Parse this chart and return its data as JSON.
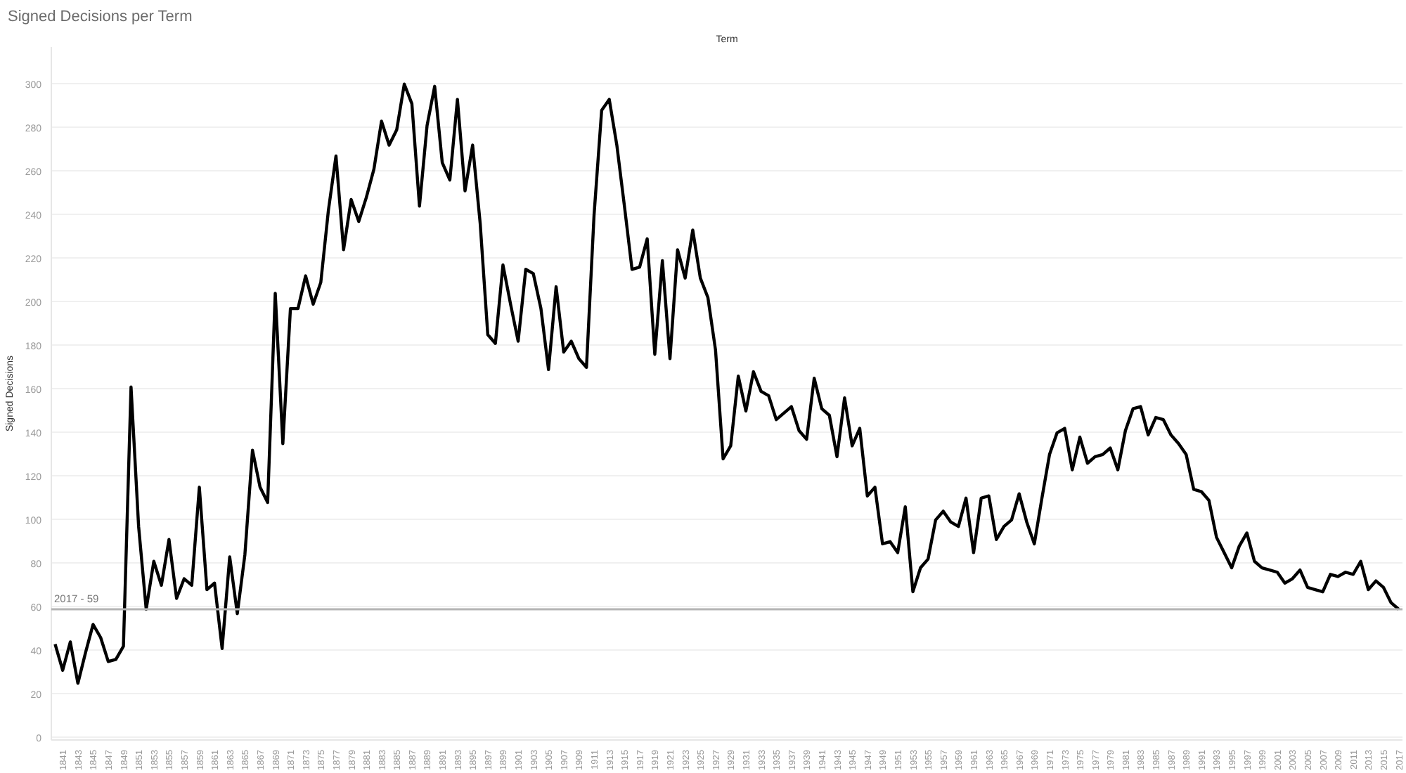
{
  "chart_data": {
    "type": "line",
    "title": "Signed Decisions per Term",
    "xlabel": "Term",
    "ylabel": "Signed Decisions",
    "x": [
      1840,
      1841,
      1842,
      1843,
      1844,
      1845,
      1846,
      1847,
      1848,
      1849,
      1850,
      1851,
      1852,
      1853,
      1854,
      1855,
      1856,
      1857,
      1858,
      1859,
      1860,
      1861,
      1862,
      1863,
      1864,
      1865,
      1866,
      1867,
      1868,
      1869,
      1870,
      1871,
      1872,
      1873,
      1874,
      1875,
      1876,
      1877,
      1878,
      1879,
      1880,
      1881,
      1882,
      1883,
      1884,
      1885,
      1886,
      1887,
      1888,
      1889,
      1890,
      1891,
      1892,
      1893,
      1894,
      1895,
      1896,
      1897,
      1898,
      1899,
      1900,
      1901,
      1902,
      1903,
      1904,
      1905,
      1906,
      1907,
      1908,
      1909,
      1910,
      1911,
      1912,
      1913,
      1914,
      1915,
      1916,
      1917,
      1918,
      1919,
      1920,
      1921,
      1922,
      1923,
      1924,
      1925,
      1926,
      1927,
      1928,
      1929,
      1930,
      1931,
      1932,
      1933,
      1934,
      1935,
      1936,
      1937,
      1938,
      1939,
      1940,
      1941,
      1942,
      1943,
      1944,
      1945,
      1946,
      1947,
      1948,
      1949,
      1950,
      1951,
      1952,
      1953,
      1954,
      1955,
      1956,
      1957,
      1958,
      1959,
      1960,
      1961,
      1962,
      1963,
      1964,
      1965,
      1966,
      1967,
      1968,
      1969,
      1970,
      1971,
      1972,
      1973,
      1974,
      1975,
      1976,
      1977,
      1978,
      1979,
      1980,
      1981,
      1982,
      1983,
      1984,
      1985,
      1986,
      1987,
      1988,
      1989,
      1990,
      1991,
      1992,
      1993,
      1994,
      1995,
      1996,
      1997,
      1998,
      1999,
      2000,
      2001,
      2002,
      2003,
      2004,
      2005,
      2006,
      2007,
      2008,
      2009,
      2010,
      2011,
      2012,
      2013,
      2014,
      2015,
      2016,
      2017
    ],
    "series": [
      {
        "color": "#000000",
        "values": [
          43,
          31,
          44,
          25,
          39,
          52,
          46,
          35,
          36,
          42,
          161,
          97,
          59,
          81,
          70,
          91,
          64,
          73,
          70,
          115,
          68,
          71,
          41,
          83,
          57,
          84,
          132,
          115,
          108,
          204,
          135,
          197,
          197,
          212,
          199,
          209,
          242,
          267,
          224,
          247,
          237,
          248,
          261,
          283,
          272,
          279,
          300,
          291,
          244,
          281,
          299,
          264,
          256,
          293,
          251,
          272,
          236,
          185,
          181,
          217,
          199,
          182,
          215,
          213,
          197,
          169,
          207,
          177,
          182,
          174,
          170,
          240,
          288,
          293,
          272,
          244,
          215,
          216,
          229,
          176,
          219,
          174,
          224,
          211,
          233,
          211,
          202,
          178,
          128,
          134,
          166,
          150,
          168,
          159,
          157,
          146,
          149,
          152,
          141,
          137,
          165,
          151,
          148,
          129,
          156,
          134,
          142,
          111,
          115,
          89,
          90,
          85,
          106,
          67,
          78,
          82,
          100,
          104,
          99,
          97,
          110,
          85,
          110,
          111,
          91,
          97,
          100,
          112,
          99,
          89,
          110,
          130,
          140,
          142,
          123,
          138,
          126,
          129,
          130,
          133,
          123,
          141,
          151,
          152,
          139,
          147,
          146,
          139,
          135,
          130,
          114,
          113,
          109,
          92,
          85,
          78,
          88,
          94,
          81,
          78,
          77,
          76,
          71,
          73,
          77,
          69,
          68,
          67,
          75,
          74,
          76,
          75,
          81,
          68,
          72,
          69,
          62,
          59
        ]
      }
    ],
    "xlim": [
      1839.5,
      2017.5
    ],
    "xticks": [
      1841,
      1843,
      1845,
      1847,
      1849,
      1851,
      1853,
      1855,
      1857,
      1859,
      1861,
      1863,
      1865,
      1867,
      1869,
      1871,
      1873,
      1875,
      1877,
      1879,
      1881,
      1883,
      1885,
      1887,
      1889,
      1891,
      1893,
      1895,
      1897,
      1899,
      1901,
      1903,
      1905,
      1907,
      1909,
      1911,
      1913,
      1915,
      1917,
      1919,
      1921,
      1923,
      1925,
      1927,
      1929,
      1931,
      1933,
      1935,
      1937,
      1939,
      1941,
      1943,
      1945,
      1947,
      1949,
      1951,
      1953,
      1955,
      1957,
      1959,
      1961,
      1963,
      1965,
      1967,
      1969,
      1971,
      1973,
      1975,
      1977,
      1979,
      1981,
      1983,
      1985,
      1987,
      1989,
      1991,
      1993,
      1995,
      1997,
      1999,
      2001,
      2003,
      2005,
      2007,
      2009,
      2011,
      2013,
      2015,
      2017
    ],
    "ylim": [
      -1,
      317
    ],
    "yticks": [
      0,
      20,
      40,
      60,
      80,
      100,
      120,
      140,
      160,
      180,
      200,
      220,
      240,
      260,
      280,
      300
    ],
    "grid": "y",
    "line_style": "solid",
    "ref_lines": [
      {
        "axis": "y",
        "value": 59,
        "color": "#b4b4b4"
      }
    ],
    "annotations": [
      "2017 - 59"
    ]
  }
}
